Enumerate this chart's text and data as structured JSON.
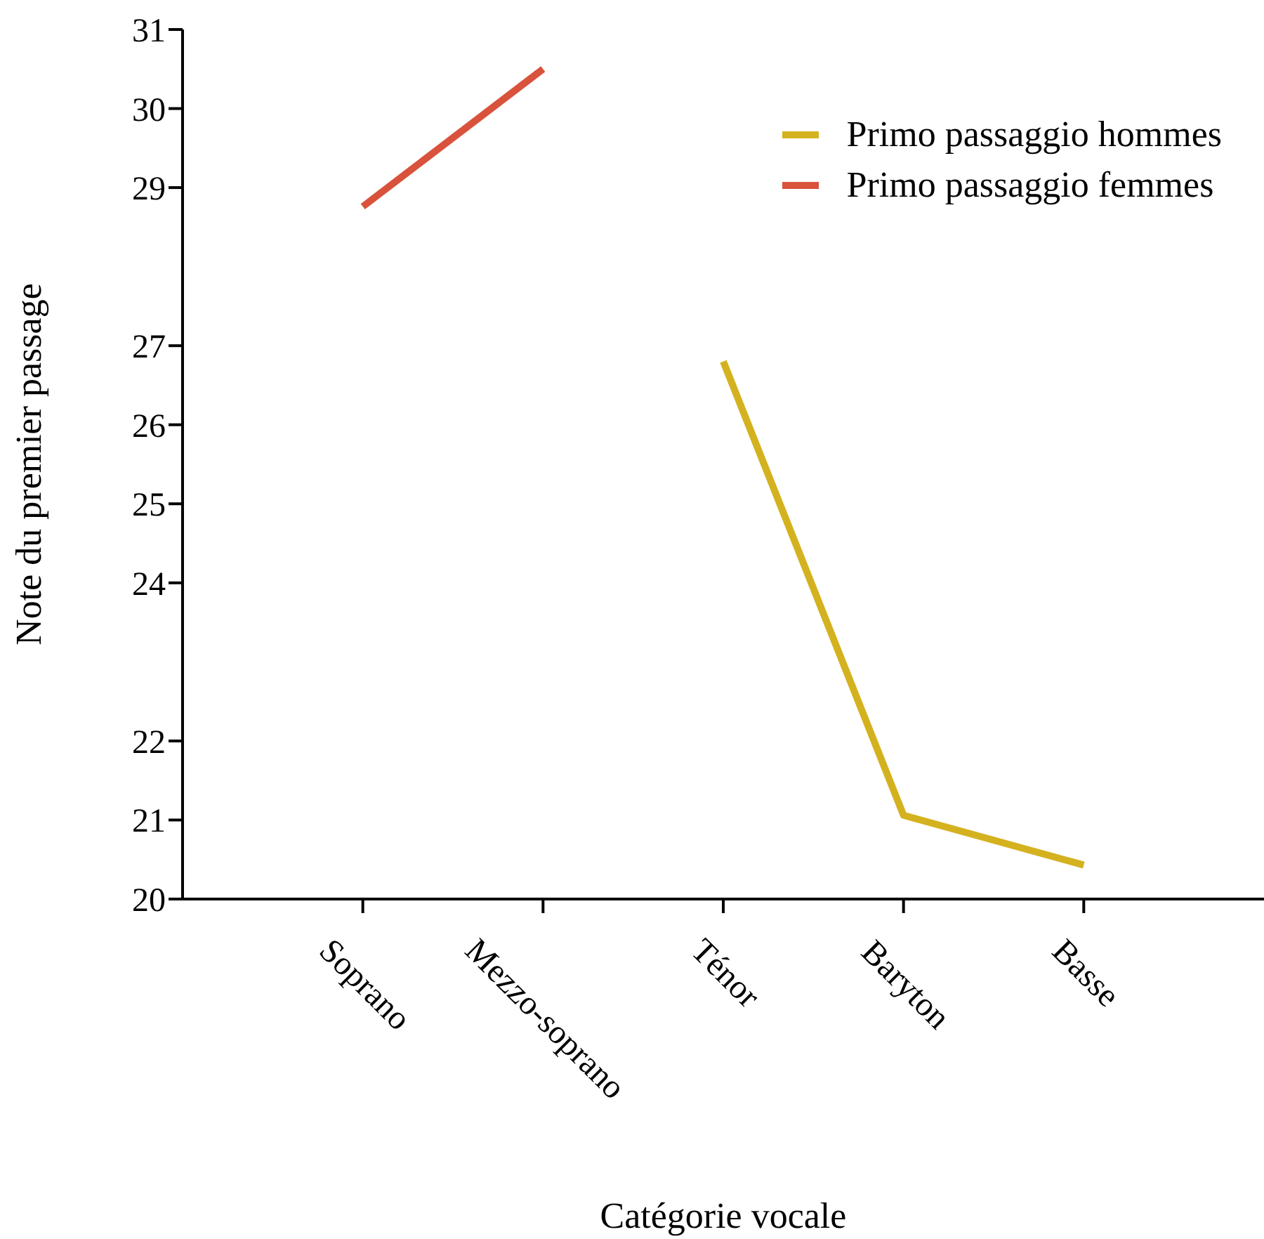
{
  "chart_data": {
    "type": "line",
    "xlabel": "Catégorie vocale",
    "ylabel": "Note du premier passage",
    "categories": [
      "Soprano",
      "Mezzo-soprano",
      "Ténor",
      "Baryton",
      "Basse"
    ],
    "ylim": [
      20,
      31
    ],
    "yticks": [
      20,
      21,
      22,
      24,
      25,
      26,
      27,
      29,
      30,
      31
    ],
    "series": [
      {
        "name": "Primo passaggio hommes",
        "color": "#d4b21f",
        "values": [
          null,
          null,
          26.8,
          21.06,
          20.43
        ]
      },
      {
        "name": "Primo passaggio femmes",
        "color": "#d9523c",
        "values": [
          28.76,
          30.5,
          null,
          null,
          null
        ]
      }
    ],
    "legend": "top right",
    "grid": false,
    "marker": "none",
    "line_style": "solid"
  }
}
